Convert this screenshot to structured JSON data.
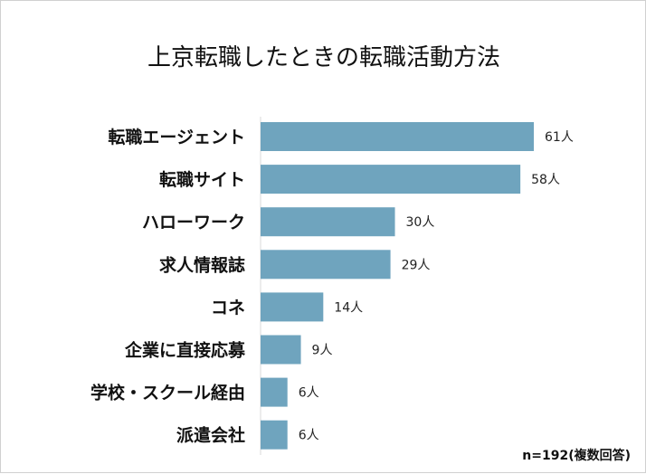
{
  "chart_data": {
    "type": "bar",
    "orientation": "horizontal",
    "title": "上京転職したときの転職活動方法",
    "categories": [
      "転職エージェント",
      "転職サイト",
      "ハローワーク",
      "求人情報誌",
      "コネ",
      "企業に直接応募",
      "学校・スクール経由",
      "派遣会社"
    ],
    "values": [
      61,
      58,
      30,
      29,
      14,
      9,
      6,
      6
    ],
    "value_labels": [
      "61人",
      "58人",
      "30人",
      "29人",
      "14人",
      "9人",
      "6人",
      "6人"
    ],
    "unit": "人",
    "xlim": [
      0,
      70
    ],
    "xlabel": "",
    "ylabel": "",
    "grid": false,
    "legend": "none",
    "note": "n=192(複数回答)",
    "bar_color": "#6fa4be",
    "axis_color": "#d9d9d9"
  }
}
